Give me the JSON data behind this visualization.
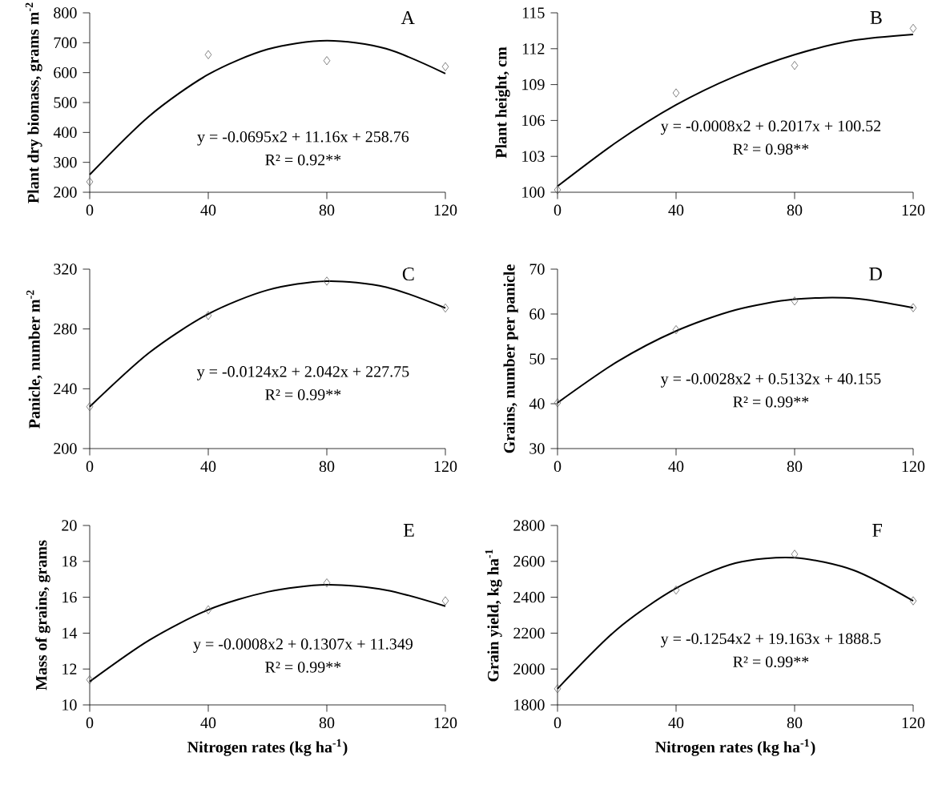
{
  "chart_data": [
    {
      "type": "scatter",
      "title": "A",
      "ylabel": "Plant dry biomass, grams m$^{-2}$",
      "xlim": [
        0,
        120
      ],
      "xticks": [
        0,
        40,
        80,
        120
      ],
      "ylim": [
        200,
        800
      ],
      "yticks": [
        200,
        300,
        400,
        500,
        600,
        700,
        800
      ],
      "annotations": [
        "y = -0.0695x2 + 11.16x + 258.76",
        "R² = 0.92**"
      ],
      "series": [
        {
          "color": "#666666",
          "marker": "diamond",
          "x": [
            0,
            40,
            80,
            120
          ],
          "values": [
            235,
            660,
            640,
            620
          ]
        },
        {
          "type": "line",
          "color": "#000000",
          "marker": "none",
          "x": [
            0,
            20,
            40,
            60,
            80,
            100,
            120
          ],
          "values": [
            259,
            454,
            594,
            678,
            707,
            680,
            597
          ]
        }
      ]
    },
    {
      "type": "scatter",
      "title": "B",
      "ylabel": "Plant height, cm",
      "xlim": [
        0,
        120
      ],
      "xticks": [
        0,
        40,
        80,
        120
      ],
      "ylim": [
        100,
        115
      ],
      "yticks": [
        100,
        103,
        106,
        109,
        112,
        115
      ],
      "annotations": [
        "y = -0.0008x2 + 0.2017x + 100.52",
        "R² = 0.98**"
      ],
      "series": [
        {
          "color": "#666666",
          "marker": "diamond",
          "x": [
            0,
            40,
            80,
            120
          ],
          "values": [
            100.2,
            108.3,
            110.6,
            113.7
          ]
        },
        {
          "type": "line",
          "color": "#000000",
          "marker": "none",
          "x": [
            0,
            20,
            40,
            60,
            80,
            100,
            120
          ],
          "values": [
            100.5,
            104.2,
            107.3,
            109.7,
            111.5,
            112.7,
            113.2
          ]
        }
      ]
    },
    {
      "type": "scatter",
      "title": "C",
      "ylabel": "Panicle, number m$^{-2}$",
      "xlim": [
        0,
        120
      ],
      "xticks": [
        0,
        40,
        80,
        120
      ],
      "ylim": [
        200,
        320
      ],
      "yticks": [
        200,
        240,
        280,
        320
      ],
      "annotations": [
        "y = -0.0124x2 + 2.042x + 227.75",
        "R² = 0.99**"
      ],
      "series": [
        {
          "color": "#666666",
          "marker": "diamond",
          "x": [
            0,
            40,
            80,
            120
          ],
          "values": [
            228,
            289,
            312,
            294
          ]
        },
        {
          "type": "line",
          "color": "#000000",
          "marker": "none",
          "x": [
            0,
            20,
            40,
            60,
            80,
            100,
            120
          ],
          "values": [
            228,
            264,
            290,
            306,
            312,
            308,
            294
          ]
        }
      ]
    },
    {
      "type": "scatter",
      "title": "D",
      "ylabel": "Grains, number per panicle",
      "xlim": [
        0,
        120
      ],
      "xticks": [
        0,
        40,
        80,
        120
      ],
      "ylim": [
        30,
        70
      ],
      "yticks": [
        30,
        40,
        50,
        60,
        70
      ],
      "annotations": [
        "y = -0.0028x2 + 0.5132x + 40.155",
        "R² = 0.99**"
      ],
      "series": [
        {
          "color": "#666666",
          "marker": "diamond",
          "x": [
            0,
            40,
            80,
            120
          ],
          "values": [
            40.2,
            56.5,
            62.9,
            61.4
          ]
        },
        {
          "type": "line",
          "color": "#000000",
          "marker": "none",
          "x": [
            0,
            20,
            40,
            60,
            80,
            100,
            120
          ],
          "values": [
            40.2,
            49.3,
            56.2,
            60.9,
            63.3,
            63.5,
            61.4
          ]
        }
      ]
    },
    {
      "type": "scatter",
      "title": "E",
      "xlabel": "Nitrogen rates (kg ha$^{-1}$)",
      "ylabel": "Mass of grains, grams",
      "xlim": [
        0,
        120
      ],
      "xticks": [
        0,
        40,
        80,
        120
      ],
      "ylim": [
        10,
        20
      ],
      "yticks": [
        10,
        12,
        14,
        16,
        18,
        20
      ],
      "annotations": [
        "y = -0.0008x2 + 0.1307x + 11.349",
        "R² = 0.99**"
      ],
      "series": [
        {
          "color": "#666666",
          "marker": "diamond",
          "x": [
            0,
            40,
            80,
            120
          ],
          "values": [
            11.4,
            15.3,
            16.8,
            15.8
          ]
        },
        {
          "type": "line",
          "color": "#000000",
          "marker": "none",
          "x": [
            0,
            20,
            40,
            60,
            80,
            100,
            120
          ],
          "values": [
            11.3,
            13.6,
            15.3,
            16.3,
            16.7,
            16.4,
            15.5
          ]
        }
      ]
    },
    {
      "type": "scatter",
      "title": "F",
      "xlabel": "Nitrogen rates (kg ha$^{-1}$)",
      "ylabel": "Grain yield, kg ha$^{-1}$",
      "xlim": [
        0,
        120
      ],
      "xticks": [
        0,
        40,
        80,
        120
      ],
      "ylim": [
        1800,
        2800
      ],
      "yticks": [
        1800,
        2000,
        2200,
        2400,
        2600,
        2800
      ],
      "annotations": [
        "y = -0.1254x2 + 19.163x + 1888.5",
        "R² = 0.99**"
      ],
      "series": [
        {
          "color": "#666666",
          "marker": "diamond",
          "x": [
            0,
            40,
            80,
            120
          ],
          "values": [
            1890,
            2440,
            2640,
            2380
          ]
        },
        {
          "type": "line",
          "color": "#000000",
          "marker": "none",
          "x": [
            0,
            20,
            40,
            60,
            80,
            100,
            120
          ],
          "values": [
            1890,
            2220,
            2450,
            2590,
            2620,
            2550,
            2380
          ]
        }
      ]
    }
  ]
}
